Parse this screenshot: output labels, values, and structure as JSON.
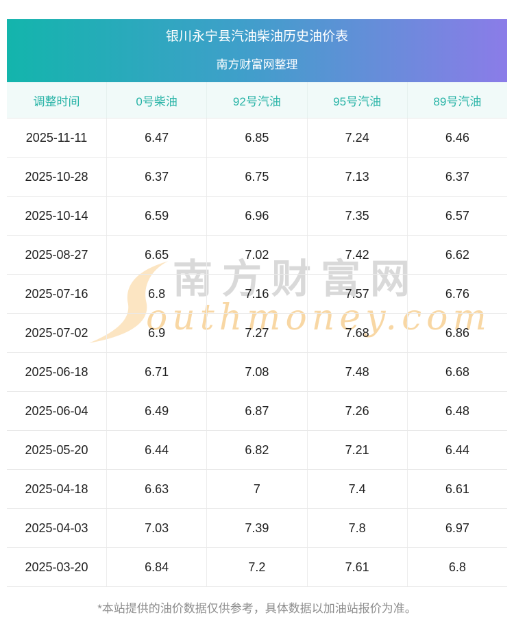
{
  "page": {
    "title": "银川永宁县汽油柴油历史油价表",
    "subtitle": "南方财富网整理",
    "footer_note": "*本站提供的油价数据仅供参考，具体数据以加油站报价为准。"
  },
  "watermark": {
    "cn_text": "南方财富网",
    "en_text": "outhmoney.com",
    "swoosh_icon": "southmoney-s-swoosh"
  },
  "colors": {
    "banner_gradient_start": "#13b5ac",
    "banner_gradient_mid": "#3f9fca",
    "banner_gradient_end": "#8b7ce8",
    "column_header_bg": "#f1faf9",
    "column_header_text": "#27b3a6",
    "cell_text": "#1f1f1f",
    "row_border": "#e9e9e9",
    "footer_text": "#8d8d8d",
    "watermark_gray": "#d9d9d9",
    "watermark_orange": "#f8d7a4",
    "watermark_swoosh": "#fce5c2"
  },
  "table": {
    "columns": [
      "调整时间",
      "0号柴油",
      "92号汽油",
      "95号汽油",
      "89号汽油"
    ],
    "rows": [
      {
        "date": "2025-11-11",
        "values": [
          "6.47",
          "6.85",
          "7.24",
          "6.46"
        ]
      },
      {
        "date": "2025-10-28",
        "values": [
          "6.37",
          "6.75",
          "7.13",
          "6.37"
        ]
      },
      {
        "date": "2025-10-14",
        "values": [
          "6.59",
          "6.96",
          "7.35",
          "6.57"
        ]
      },
      {
        "date": "2025-08-27",
        "values": [
          "6.65",
          "7.02",
          "7.42",
          "6.62"
        ]
      },
      {
        "date": "2025-07-16",
        "values": [
          "6.8",
          "7.16",
          "7.57",
          "6.76"
        ]
      },
      {
        "date": "2025-07-02",
        "values": [
          "6.9",
          "7.27",
          "7.68",
          "6.86"
        ]
      },
      {
        "date": "2025-06-18",
        "values": [
          "6.71",
          "7.08",
          "7.48",
          "6.68"
        ]
      },
      {
        "date": "2025-06-04",
        "values": [
          "6.49",
          "6.87",
          "7.26",
          "6.48"
        ]
      },
      {
        "date": "2025-05-20",
        "values": [
          "6.44",
          "6.82",
          "7.21",
          "6.44"
        ]
      },
      {
        "date": "2025-04-18",
        "values": [
          "6.63",
          "7",
          "7.4",
          "6.61"
        ]
      },
      {
        "date": "2025-04-03",
        "values": [
          "7.03",
          "7.39",
          "7.8",
          "6.97"
        ]
      },
      {
        "date": "2025-03-20",
        "values": [
          "6.84",
          "7.2",
          "7.61",
          "6.8"
        ]
      }
    ]
  },
  "chart_data": {
    "type": "table",
    "title": "银川永宁县汽油柴油历史油价表",
    "subtitle": "南方财富网整理",
    "columns": [
      "调整时间",
      "0号柴油",
      "92号汽油",
      "95号汽油",
      "89号汽油"
    ],
    "rows": [
      [
        "2025-11-11",
        6.47,
        6.85,
        7.24,
        6.46
      ],
      [
        "2025-10-28",
        6.37,
        6.75,
        7.13,
        6.37
      ],
      [
        "2025-10-14",
        6.59,
        6.96,
        7.35,
        6.57
      ],
      [
        "2025-08-27",
        6.65,
        7.02,
        7.42,
        6.62
      ],
      [
        "2025-07-16",
        6.8,
        7.16,
        7.57,
        6.76
      ],
      [
        "2025-07-02",
        6.9,
        7.27,
        7.68,
        6.86
      ],
      [
        "2025-06-18",
        6.71,
        7.08,
        7.48,
        6.68
      ],
      [
        "2025-06-04",
        6.49,
        6.87,
        7.26,
        6.48
      ],
      [
        "2025-05-20",
        6.44,
        6.82,
        7.21,
        6.44
      ],
      [
        "2025-04-18",
        6.63,
        7,
        7.4,
        6.61
      ],
      [
        "2025-04-03",
        7.03,
        7.39,
        7.8,
        6.97
      ],
      [
        "2025-03-20",
        6.84,
        7.2,
        7.61,
        6.8
      ]
    ],
    "note": "*本站提供的油价数据仅供参考，具体数据以加油站报价为准。"
  }
}
